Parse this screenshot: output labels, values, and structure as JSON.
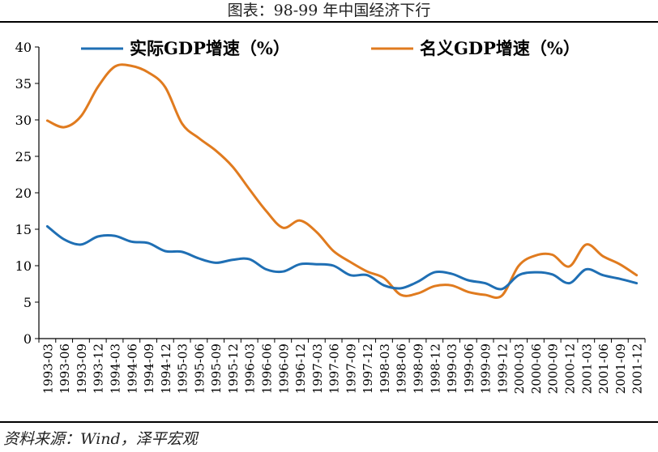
{
  "header": {
    "title": "图表：98-99 年中国经济下行"
  },
  "footer": {
    "source": "资料来源：Wind，泽平宏观"
  },
  "chart_data": {
    "type": "line",
    "title": "",
    "xlabel": "",
    "ylabel": "",
    "ylim": [
      0,
      40
    ],
    "yticks": [
      0,
      5,
      10,
      15,
      20,
      25,
      30,
      35,
      40
    ],
    "grid": false,
    "legend_position": "top",
    "categories": [
      "1993-03",
      "1993-06",
      "1993-09",
      "1993-12",
      "1994-03",
      "1994-06",
      "1994-09",
      "1994-12",
      "1995-03",
      "1995-06",
      "1995-09",
      "1995-12",
      "1996-03",
      "1996-06",
      "1996-09",
      "1996-12",
      "1997-03",
      "1997-06",
      "1997-09",
      "1997-12",
      "1998-03",
      "1998-06",
      "1998-09",
      "1998-12",
      "1999-03",
      "1999-06",
      "1999-09",
      "1999-12",
      "2000-03",
      "2000-06",
      "2000-09",
      "2000-12",
      "2001-03",
      "2001-06",
      "2001-09",
      "2001-12"
    ],
    "series": [
      {
        "name": "实际GDP增速（%）",
        "color": "#1f6fb4",
        "values": [
          15.4,
          13.6,
          12.9,
          14.0,
          14.1,
          13.3,
          13.1,
          12.0,
          11.9,
          11.0,
          10.4,
          10.8,
          10.9,
          9.5,
          9.2,
          10.2,
          10.2,
          10.0,
          8.7,
          8.7,
          7.3,
          6.9,
          7.8,
          9.1,
          8.9,
          8.0,
          7.6,
          6.8,
          8.7,
          9.1,
          8.8,
          7.6,
          9.5,
          8.7,
          8.2,
          7.6
        ]
      },
      {
        "name": "名义GDP增速（%）",
        "color": "#e07b1f",
        "values": [
          29.9,
          29.0,
          30.5,
          34.5,
          37.3,
          37.4,
          36.5,
          34.5,
          29.5,
          27.5,
          25.8,
          23.6,
          20.5,
          17.5,
          15.2,
          16.2,
          14.6,
          12.0,
          10.5,
          9.2,
          8.3,
          6.0,
          6.2,
          7.2,
          7.3,
          6.4,
          6.0,
          5.9,
          10.0,
          11.4,
          11.5,
          9.9,
          12.9,
          11.3,
          10.2,
          8.7
        ]
      }
    ]
  }
}
